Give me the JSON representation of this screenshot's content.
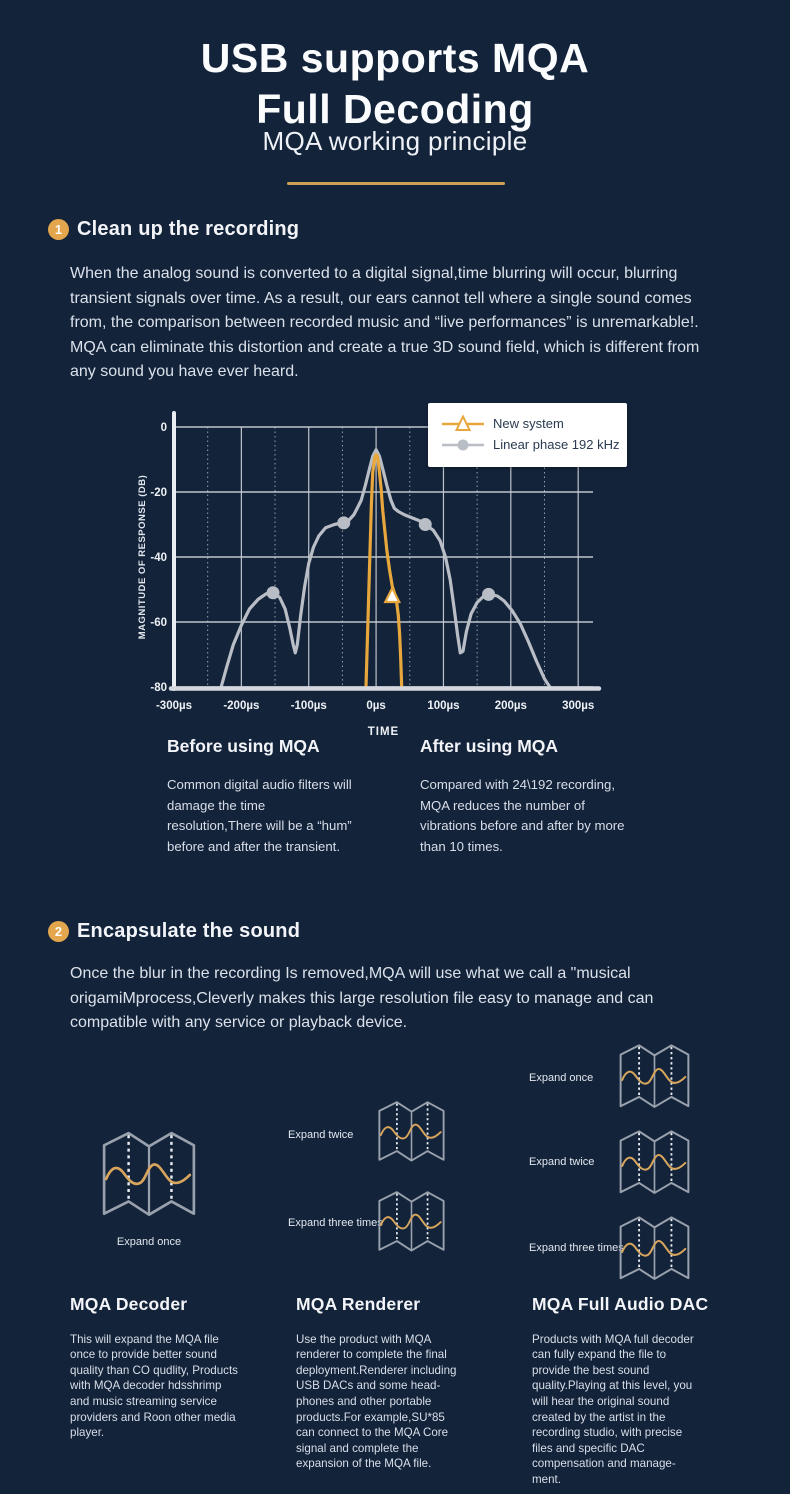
{
  "header": {
    "title_line1": "USB supports MQA",
    "title_line2": "Full Decoding",
    "subtitle": "MQA working principle"
  },
  "colors": {
    "background": "#13233a",
    "accent_orange": "#e5a33d",
    "divider_gold": "#cf9f55",
    "series_new_system": "#e7a73c",
    "series_linear_phase": "#b9bec6"
  },
  "section1": {
    "number": "1",
    "heading": "Clean up the recording",
    "body": "When the analog sound is converted to a digital signal,time blurring will occur, blurring transient signals over time. As a result, our ears cannot tell where a single sound comes from, the comparison between recorded music and “live performances” is unremarkable!. MQA can eliminate this distortion and create a true 3D sound field, which is different from any sound you have ever heard."
  },
  "chart_data": {
    "type": "line",
    "xlabel": "TIME",
    "ylabel": "MAGNITUDE OF RESPONSE (DB)",
    "x_ticks": [
      "-300µs",
      "-200µs",
      "-100µs",
      "0µs",
      "100µs",
      "200µs",
      "300µs"
    ],
    "x_tick_values": [
      -300,
      -200,
      -100,
      0,
      100,
      200,
      300
    ],
    "x_minor_values": [
      -250,
      -150,
      -50,
      50,
      150,
      250
    ],
    "y_ticks": [
      0,
      -20,
      -40,
      -60,
      -80
    ],
    "xlim": [
      -300,
      322
    ],
    "ylim": [
      -80,
      0
    ],
    "legend_position": "top-right",
    "series": [
      {
        "name": "New system",
        "color": "#e7a73c",
        "marker": "triangle",
        "points": [
          [
            -15,
            -80
          ],
          [
            -13,
            -66
          ],
          [
            -11,
            -52
          ],
          [
            -9,
            -38
          ],
          [
            -7,
            -24
          ],
          [
            -5,
            -14
          ],
          [
            -2,
            -9.5
          ],
          [
            0,
            -8.5
          ],
          [
            2,
            -9
          ],
          [
            4,
            -12
          ],
          [
            6,
            -16
          ],
          [
            7.5,
            -19
          ],
          [
            8.5,
            -22
          ],
          [
            10,
            -26
          ],
          [
            13,
            -32
          ],
          [
            16,
            -38
          ],
          [
            20,
            -44
          ],
          [
            24,
            -49
          ],
          [
            27,
            -51
          ],
          [
            30,
            -53
          ],
          [
            33,
            -58
          ],
          [
            35,
            -64
          ],
          [
            36.5,
            -71
          ],
          [
            38,
            -80
          ]
        ],
        "marker_points": [
          [
            24,
            -52
          ]
        ]
      },
      {
        "name": "Linear phase 192 kHz",
        "color": "#b9bec6",
        "marker": "circle",
        "points": [
          [
            -230,
            -80
          ],
          [
            -222,
            -74
          ],
          [
            -212,
            -67
          ],
          [
            -200,
            -61
          ],
          [
            -188,
            -56
          ],
          [
            -175,
            -53
          ],
          [
            -163,
            -51.3
          ],
          [
            -152,
            -51
          ],
          [
            -143,
            -52.5
          ],
          [
            -135,
            -56
          ],
          [
            -128,
            -62
          ],
          [
            -123,
            -67
          ],
          [
            -120,
            -69.5
          ],
          [
            -117,
            -67
          ],
          [
            -112,
            -58
          ],
          [
            -106,
            -49
          ],
          [
            -100,
            -42
          ],
          [
            -93,
            -37
          ],
          [
            -85,
            -33.5
          ],
          [
            -75,
            -31
          ],
          [
            -62,
            -30
          ],
          [
            -48,
            -29.4
          ],
          [
            -40,
            -28.6
          ],
          [
            -33,
            -27
          ],
          [
            -28,
            -25
          ],
          [
            -22,
            -22.5
          ],
          [
            -16,
            -18
          ],
          [
            -10,
            -13
          ],
          [
            -5,
            -9
          ],
          [
            0,
            -7
          ],
          [
            5,
            -9
          ],
          [
            10,
            -13
          ],
          [
            16,
            -18
          ],
          [
            22,
            -22.5
          ],
          [
            27,
            -25
          ],
          [
            33,
            -26
          ],
          [
            42,
            -27
          ],
          [
            54,
            -28
          ],
          [
            64,
            -28.8
          ],
          [
            73,
            -30
          ],
          [
            85,
            -31.8
          ],
          [
            95,
            -35
          ],
          [
            103,
            -40
          ],
          [
            110,
            -47
          ],
          [
            116,
            -56
          ],
          [
            121,
            -64
          ],
          [
            125,
            -69.5
          ],
          [
            129,
            -69
          ],
          [
            134,
            -63
          ],
          [
            141,
            -57.5
          ],
          [
            150,
            -54
          ],
          [
            160,
            -52
          ],
          [
            170,
            -51.5
          ],
          [
            180,
            -52
          ],
          [
            190,
            -53.5
          ],
          [
            202,
            -56.5
          ],
          [
            214,
            -60.5
          ],
          [
            226,
            -66
          ],
          [
            238,
            -72
          ],
          [
            250,
            -77.5
          ],
          [
            258,
            -80
          ]
        ],
        "marker_points": [
          [
            -153,
            -51
          ],
          [
            -48,
            -29.5
          ],
          [
            73,
            -30
          ],
          [
            167,
            -51.5
          ]
        ]
      }
    ]
  },
  "comparison": {
    "before": {
      "title": "Before using MQA",
      "body": "Common digital audio filters will damage the time resolution,There will be a “hum” before and after the transient."
    },
    "after": {
      "title": "After using MQA",
      "body": "Compared with 24\\192 recording, MQA reduces the number of vibrations before and after by more than 10 times."
    }
  },
  "section2": {
    "number": "2",
    "heading": "Encapsulate the sound",
    "body": "Once the blur in the recording Is removed,MQA will use what we call a \"musical origamiMprocess,Cleverly makes this large resolution file easy to manage and can compatible with any service or playback device."
  },
  "origami": {
    "col1_labels": [
      "Expand once"
    ],
    "col2_labels": [
      "Expand twice",
      "Expand three times"
    ],
    "col3_labels": [
      "Expand once",
      "Expand twice",
      "Expand three times"
    ]
  },
  "columns": [
    {
      "title": "MQA Decoder",
      "body": "This will expand the MQA file once to provide better sound quality than CO qudlity, Products with MQA decoder hdsshrimp and music streaming service providers and Roon other media player."
    },
    {
      "title": "MQA Renderer",
      "body": "Use the product with MQA renderer to complete the final deployment.Renderer including USB DACs and some head-phones and other portable products.For example,SU*85 can connect to the MQA Core signal and complete the expansion of the MQA file."
    },
    {
      "title": "MQA Full Audio DAC",
      "body": "Products with MQA full decoder can fully expand the file to provide the best sound quality.Playing at this level, you will hear the original sound created by the artist in the recording studio, with precise files and specific DAC compensation and manage-ment."
    }
  ]
}
